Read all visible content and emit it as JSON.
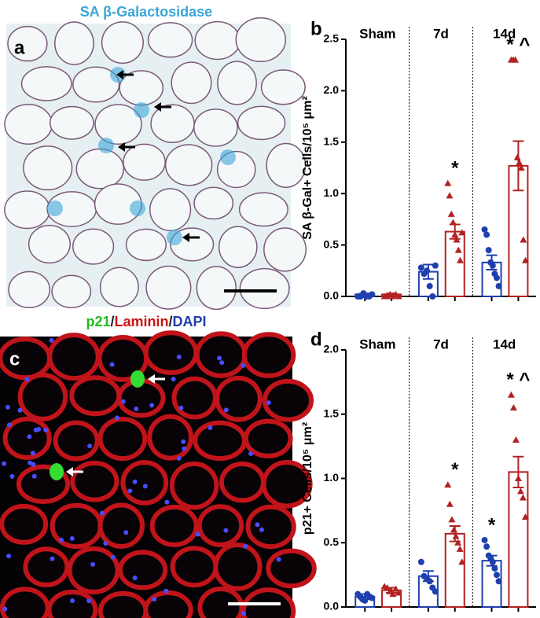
{
  "figure": {
    "panel_a": {
      "title": "SA β-Galactosidase",
      "label": "a"
    },
    "panel_c": {
      "title_parts": [
        "p21",
        "/",
        "Laminin",
        "/",
        "DAPI"
      ],
      "label": "c"
    }
  },
  "chart_data": [
    {
      "type": "bar",
      "label": "b",
      "ylabel": "SA β-Gal+ Cells/10⁵ μm²",
      "categories": [
        "Sham",
        "7d",
        "14d"
      ],
      "ylim": [
        0,
        2.5
      ],
      "yticks": [
        {
          "value": 0,
          "label": "0.0"
        },
        {
          "value": 0.5,
          "label": "0.5"
        },
        {
          "value": 1,
          "label": "1.0"
        },
        {
          "value": 1.5,
          "label": "1.5"
        },
        {
          "value": 2,
          "label": "2.0"
        },
        {
          "value": 2.5,
          "label": "2.5"
        }
      ],
      "series": [
        {
          "color": "#1f3fae",
          "marker": "circle",
          "values": [
            0.02,
            0.24,
            0.33
          ],
          "errors": [
            0.01,
            0.07,
            0.07
          ],
          "points": [
            [
              0,
              0,
              0.03,
              0,
              0,
              0.02
            ],
            [
              0.28,
              0.22,
              0.25,
              0.1,
              0,
              0.3
            ],
            [
              0.65,
              0.6,
              0.45,
              0.33,
              0.3,
              0.22,
              0.18,
              0.1
            ]
          ],
          "annotations": [
            null,
            null,
            null
          ]
        },
        {
          "color": "#b22222",
          "marker": "triangle",
          "values": [
            0.02,
            0.63,
            1.27
          ],
          "errors": [
            0.01,
            0.07,
            0.24
          ],
          "points": [
            [
              0,
              0,
              0.02,
              0,
              0.02,
              0
            ],
            [
              1.1,
              0.98,
              0.8,
              0.72,
              0.6,
              0.55,
              0.45,
              0.35,
              0.62
            ],
            [
              2.3,
              2.3,
              2.3,
              1.35,
              1.3,
              1.25,
              0.55,
              0.35
            ]
          ],
          "annotations": [
            null,
            "*",
            "* ^"
          ]
        }
      ]
    },
    {
      "type": "bar",
      "label": "d",
      "ylabel": "p21+ Cells/10⁵ μm²",
      "categories": [
        "Sham",
        "7d",
        "14d"
      ],
      "ylim": [
        0,
        2
      ],
      "yticks": [
        {
          "value": 0,
          "label": "0.0"
        },
        {
          "value": 0.5,
          "label": "0.5"
        },
        {
          "value": 1,
          "label": "1.0"
        },
        {
          "value": 1.5,
          "label": "1.5"
        },
        {
          "value": 2,
          "label": "2.0"
        }
      ],
      "series": [
        {
          "color": "#1f3fae",
          "marker": "circle",
          "values": [
            0.08,
            0.24,
            0.36
          ],
          "errors": [
            0.02,
            0.04,
            0.04
          ],
          "points": [
            [
              0.1,
              0.08,
              0.06,
              0.05,
              0.1,
              0.08,
              0.07
            ],
            [
              0.35,
              0.24,
              0.22,
              0.2,
              0.15,
              0.12
            ],
            [
              0.52,
              0.47,
              0.4,
              0.38,
              0.35,
              0.3,
              0.25,
              0.2
            ]
          ],
          "annotations": [
            null,
            null,
            "*"
          ]
        },
        {
          "color": "#b22222",
          "marker": "triangle",
          "values": [
            0.13,
            0.57,
            1.05
          ],
          "errors": [
            0.02,
            0.06,
            0.12
          ],
          "points": [
            [
              0.16,
              0.15,
              0.12,
              0.1,
              0.14,
              0.11
            ],
            [
              0.95,
              0.8,
              0.68,
              0.6,
              0.55,
              0.5,
              0.45,
              0.35
            ],
            [
              1.65,
              1.55,
              1.3,
              1,
              0.9,
              0.85,
              0.7
            ]
          ],
          "annotations": [
            null,
            "*",
            "* ^"
          ]
        }
      ]
    }
  ]
}
